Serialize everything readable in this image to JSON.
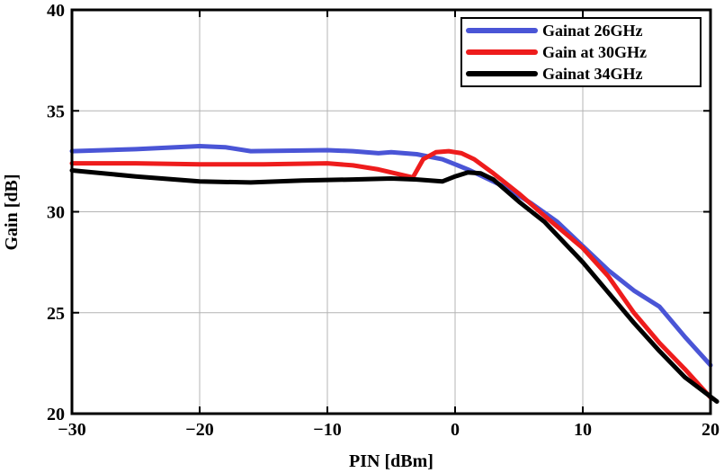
{
  "chart_data": {
    "type": "line",
    "title": "",
    "xlabel": "PIN [dBm]",
    "ylabel": "Gain [dB]",
    "xlim": [
      -30,
      20
    ],
    "ylim": [
      20,
      40
    ],
    "xticks": [
      -30,
      -20,
      -10,
      0,
      10,
      20
    ],
    "xtick_labels": [
      "−30",
      "−20",
      "−10",
      "0",
      "10",
      "20"
    ],
    "yticks": [
      20,
      25,
      30,
      35,
      40
    ],
    "ytick_labels": [
      "20",
      "25",
      "30",
      "35",
      "40"
    ],
    "grid": true,
    "legend_position": "top-right",
    "series": [
      {
        "name": "Gainat 26GHz",
        "color": "#4a55d6",
        "x": [
          -30,
          -25,
          -20,
          -18,
          -16,
          -10,
          -8,
          -6,
          -5,
          -3,
          -1,
          0,
          1,
          2,
          4,
          6,
          8,
          10,
          12,
          14,
          16,
          18,
          20
        ],
        "y": [
          33.0,
          33.1,
          33.25,
          33.2,
          33.0,
          33.05,
          33.0,
          32.9,
          32.95,
          32.85,
          32.6,
          32.35,
          32.1,
          31.8,
          31.2,
          30.4,
          29.5,
          28.3,
          27.1,
          26.1,
          25.3,
          23.8,
          22.4
        ]
      },
      {
        "name": "Gain at 30GHz",
        "color": "#ee1c1c",
        "x": [
          -30,
          -25,
          -20,
          -15,
          -10,
          -8,
          -6,
          -4,
          -3.3,
          -2.5,
          -1.5,
          -0.5,
          0.5,
          1.5,
          3,
          5,
          7,
          10,
          12,
          14,
          16,
          18,
          20
        ],
        "y": [
          32.4,
          32.4,
          32.35,
          32.35,
          32.4,
          32.3,
          32.1,
          31.8,
          31.7,
          32.6,
          32.95,
          33.0,
          32.9,
          32.6,
          31.9,
          30.9,
          29.8,
          28.2,
          26.8,
          25.0,
          23.5,
          22.2,
          20.8
        ]
      },
      {
        "name": "Gainat 34GHz",
        "color": "#000000",
        "x": [
          -30,
          -25,
          -20,
          -16,
          -12,
          -8,
          -5,
          -3,
          -1,
          0,
          1,
          2,
          3,
          5,
          7,
          10,
          12,
          14,
          16,
          18,
          20.5
        ],
        "y": [
          32.05,
          31.75,
          31.5,
          31.45,
          31.55,
          31.6,
          31.65,
          31.6,
          31.5,
          31.75,
          31.95,
          31.9,
          31.6,
          30.5,
          29.5,
          27.5,
          26.0,
          24.5,
          23.1,
          21.8,
          20.6
        ]
      }
    ]
  }
}
